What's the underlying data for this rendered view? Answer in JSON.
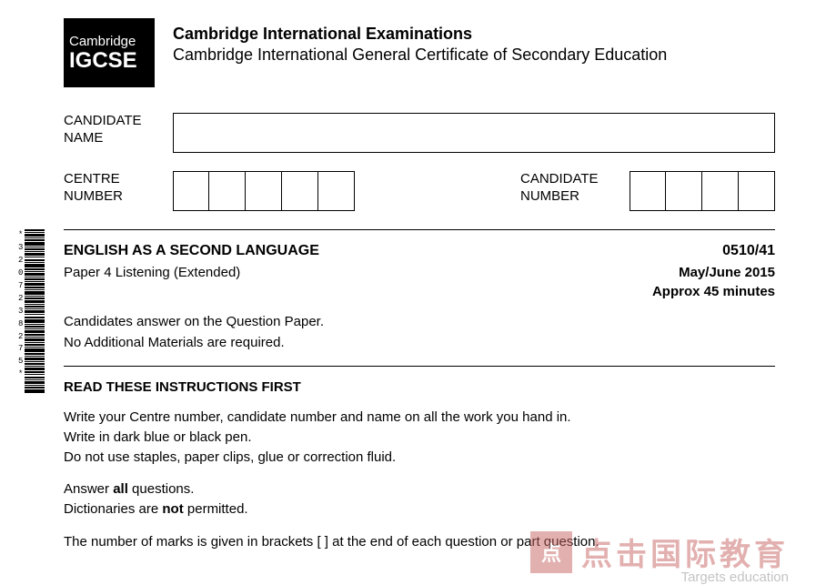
{
  "logo": {
    "top": "Cambridge",
    "bottom": "IGCSE"
  },
  "header": {
    "org_title": "Cambridge International Examinations",
    "org_sub": "Cambridge International General Certificate of Secondary Education"
  },
  "fields": {
    "candidate_name_label": "CANDIDATE\nNAME",
    "centre_number_label": "CENTRE\nNUMBER",
    "candidate_number_label": "CANDIDATE\nNUMBER",
    "centre_boxes": 5,
    "candidate_boxes": 4
  },
  "subject": {
    "title": "ENGLISH AS A SECOND LANGUAGE",
    "code": "0510/41",
    "paper": "Paper 4  Listening (Extended)",
    "session": "May/June 2015",
    "duration": "Approx 45 minutes"
  },
  "notes": {
    "line1": "Candidates answer on the Question Paper.",
    "line2": "No Additional Materials are required."
  },
  "instructions": {
    "heading": "READ THESE INSTRUCTIONS FIRST",
    "block1": [
      "Write your Centre number, candidate number and name on all the work you hand in.",
      "Write in dark blue or black pen.",
      "Do not use staples, paper clips, glue or correction fluid."
    ],
    "block2_pre": "Answer ",
    "block2_bold": "all",
    "block2_post": " questions.",
    "block3_pre": "Dictionaries are ",
    "block3_bold": "not",
    "block3_post": " permitted.",
    "marks_line": "The number of marks is given in brackets [  ] at the end of each question or part question."
  },
  "barcode_digits": [
    "*",
    "3",
    "2",
    "0",
    "7",
    "2",
    "3",
    "8",
    "2",
    "7",
    "5",
    "*"
  ],
  "watermark": {
    "box_char": "点",
    "cn": "点击国际教育",
    "en": "Targets education"
  },
  "colors": {
    "text": "#000000",
    "bg": "#ffffff",
    "wm": "#c86464",
    "wm_sub": "#888888"
  }
}
